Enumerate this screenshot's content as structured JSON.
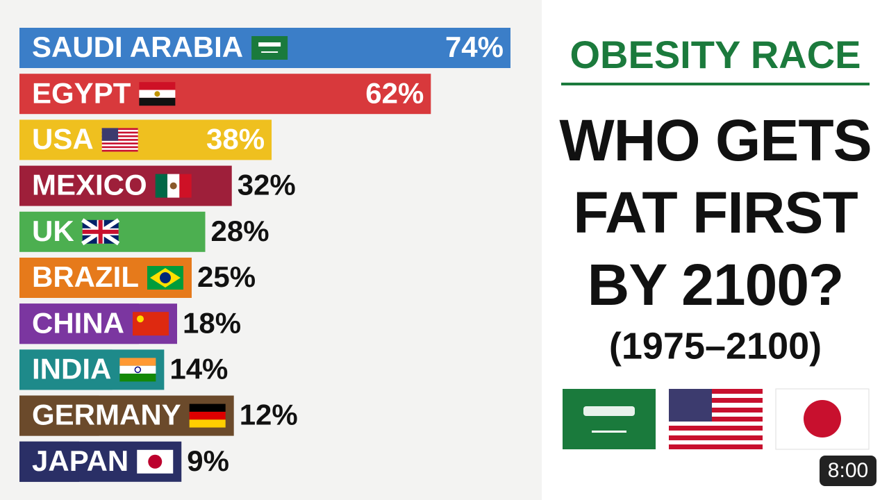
{
  "chart_data": {
    "type": "bar",
    "orientation": "horizontal",
    "title": "OBESITY RACE",
    "subtitle": "WHO GETS FAT FIRST BY 2100?",
    "annotation": "(1975–2100)",
    "categories": [
      "SAUDI ARABIA",
      "EGYPT",
      "USA",
      "MEXICO",
      "UK",
      "BRAZIL",
      "CHINA",
      "INDIA",
      "GERMANY",
      "JAPAN"
    ],
    "values": [
      74,
      62,
      38,
      32,
      28,
      25,
      18,
      14,
      12,
      9
    ],
    "value_labels": [
      "74%",
      "62%",
      "38%",
      "32%",
      "28%",
      "25%",
      "18%",
      "14%",
      "12%",
      "9%"
    ],
    "colors": [
      "#3b7ec8",
      "#d8393c",
      "#efc01f",
      "#9e1f3a",
      "#4caf50",
      "#e67a1b",
      "#7b36a0",
      "#1e8a8a",
      "#6b4a2b",
      "#2a2f66"
    ]
  },
  "video": {
    "duration": "8:00"
  }
}
